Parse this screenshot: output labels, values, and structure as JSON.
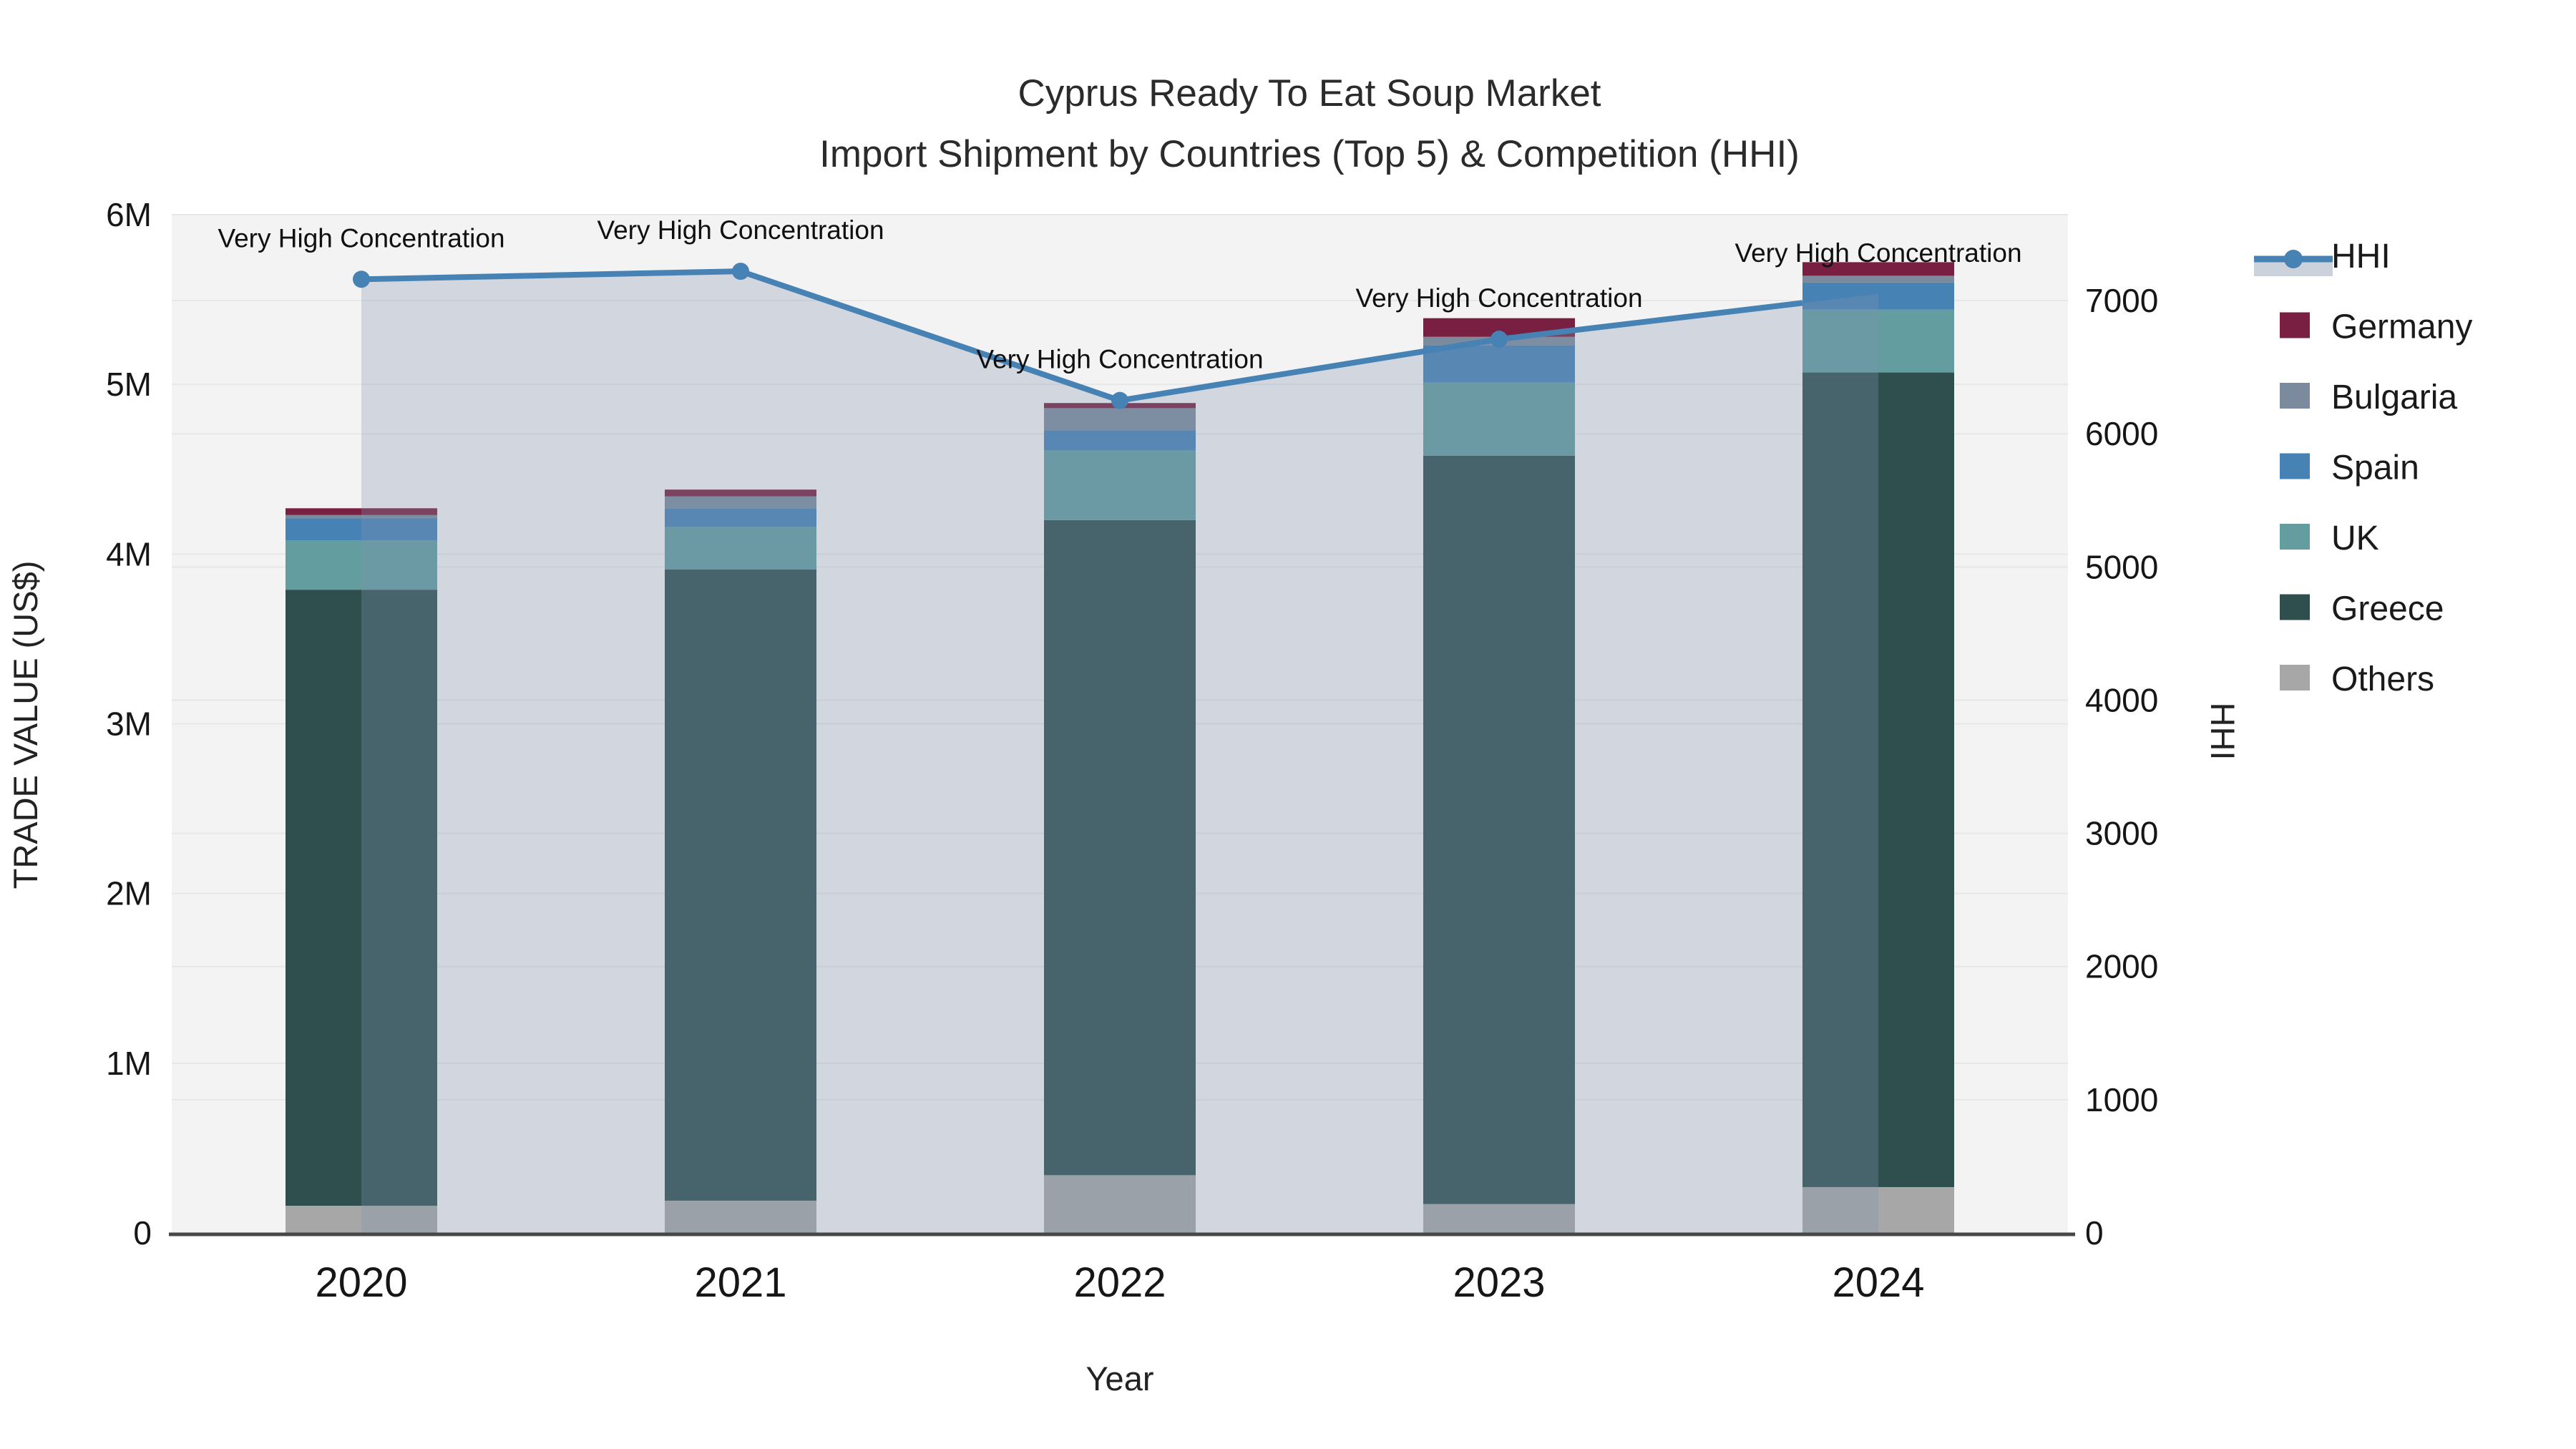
{
  "title": {
    "line1": "Cyprus Ready To Eat Soup Market",
    "line2": "Import Shipment by Countries (Top 5) & Competition (HHI)"
  },
  "chart_data": {
    "type": "combo-stacked-bar-line",
    "categories": [
      "2020",
      "2021",
      "2022",
      "2023",
      "2024"
    ],
    "x_axis_label": "Year",
    "left_axis": {
      "label": "TRADE VALUE (US$)",
      "unit": "M",
      "ylim": [
        0,
        6000000
      ],
      "tick_labels": [
        "0",
        "1M",
        "2M",
        "3M",
        "4M",
        "5M",
        "6M"
      ],
      "tick_values": [
        0,
        1000000,
        2000000,
        3000000,
        4000000,
        5000000,
        6000000
      ]
    },
    "right_axis": {
      "label": "HHI",
      "ylim": [
        0,
        7645
      ],
      "tick_labels": [
        "0",
        "1000",
        "2000",
        "3000",
        "4000",
        "5000",
        "6000",
        "7000"
      ],
      "tick_values": [
        0,
        1000,
        2000,
        3000,
        4000,
        5000,
        6000,
        7000
      ]
    },
    "series": [
      {
        "name": "Others",
        "color": "#a7a7a7",
        "values_musd": [
          0.16,
          0.19,
          0.34,
          0.17,
          0.27
        ]
      },
      {
        "name": "Greece",
        "color": "#2f4f4f",
        "values_musd": [
          3.63,
          3.72,
          3.86,
          4.41,
          4.8
        ]
      },
      {
        "name": "UK",
        "color": "#649d9f",
        "values_musd": [
          0.29,
          0.25,
          0.41,
          0.43,
          0.37
        ]
      },
      {
        "name": "Spain",
        "color": "#4682b4",
        "values_musd": [
          0.13,
          0.11,
          0.12,
          0.22,
          0.16
        ]
      },
      {
        "name": "Bulgaria",
        "color": "#7b8a9c",
        "values_musd": [
          0.02,
          0.07,
          0.13,
          0.05,
          0.04
        ]
      },
      {
        "name": "Germany",
        "color": "#791f41",
        "values_musd": [
          0.04,
          0.04,
          0.03,
          0.11,
          0.08
        ]
      }
    ],
    "bar_totals_musd": [
      4.27,
      4.38,
      4.89,
      5.39,
      5.72
    ],
    "line_series": {
      "name": "HHI",
      "values": [
        7160,
        7220,
        6250,
        6710,
        7050
      ],
      "color": "#4682b4",
      "area_fill": "rgba(130,150,175,0.30)"
    },
    "annotations": [
      {
        "year": "2020",
        "text": "Very High Concentration"
      },
      {
        "year": "2021",
        "text": "Very High Concentration"
      },
      {
        "year": "2022",
        "text": "Very High Concentration"
      },
      {
        "year": "2023",
        "text": "Very High Concentration"
      },
      {
        "year": "2024",
        "text": "Very High Concentration"
      }
    ],
    "legend": {
      "position": "right",
      "items": [
        {
          "label": "HHI",
          "type": "line",
          "color": "#4682b4"
        },
        {
          "label": "Germany",
          "type": "swatch",
          "color": "#791f41"
        },
        {
          "label": "Bulgaria",
          "type": "swatch",
          "color": "#7b8a9c"
        },
        {
          "label": "Spain",
          "type": "swatch",
          "color": "#4682b4"
        },
        {
          "label": "UK",
          "type": "swatch",
          "color": "#649d9f"
        },
        {
          "label": "Greece",
          "type": "swatch",
          "color": "#2f4f4f"
        },
        {
          "label": "Others",
          "type": "swatch",
          "color": "#a7a7a7"
        }
      ]
    },
    "grid": true,
    "plot_bg": "#f4f3f4",
    "axis_line_color": "#474747",
    "grid_color": "#e7e7e7"
  }
}
